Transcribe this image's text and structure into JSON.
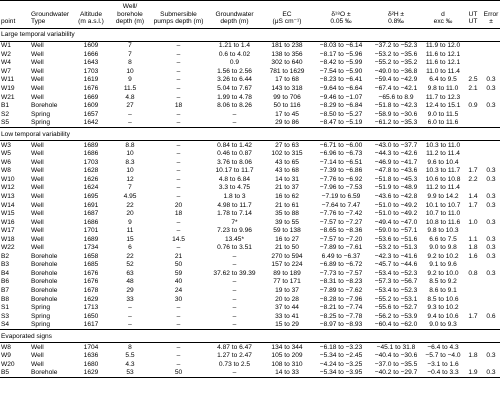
{
  "header": [
    [
      "point"
    ],
    [
      "Groundwater",
      "Type"
    ],
    [
      "Altitude",
      "(m a.s.l.)"
    ],
    [
      "Well/",
      "borehole",
      "depth (m)"
    ],
    [
      "Submersible",
      "pumps depth (m)"
    ],
    [
      "Groundwater",
      "depth (m)"
    ],
    [
      "EC",
      "(μS cm⁻¹)"
    ],
    [
      "δ¹⁸O ±",
      "0.05 ‰"
    ],
    [
      "δ²H ±",
      "0.8‰"
    ],
    [
      "d",
      "exc ‰"
    ],
    [
      "UT",
      "UT"
    ],
    [
      "Error",
      "±"
    ]
  ],
  "sections": [
    {
      "title": "Large temporal variability",
      "rows": [
        [
          "W1",
          "Well",
          "1609",
          "7",
          "–",
          "1.21 to 1.4",
          "181 to 238",
          "−8.03 to −6.14",
          "−37.2 to −52.3",
          "11.9 to 12.0",
          null,
          null
        ],
        [
          "W2",
          "Well",
          "1666",
          "7",
          "–",
          "0.6 to 4.02",
          "138 to 356",
          "−8.17 to −5.96",
          "−53.2 to −35.6",
          "11.6 to 12.1",
          null,
          null
        ],
        [
          "W4",
          "Well",
          "1643",
          "8",
          "–",
          "0.9",
          "302 to 640",
          "−8.42 to −5.99",
          "−55.2 to −35.2",
          "11.6 to 12.1",
          null,
          null
        ],
        [
          "W7",
          "Well",
          "1703",
          "10",
          "–",
          "1.56 to 2.56",
          "781 to 1629",
          "−7.54 to −5.90",
          "−49.0 to −36.8",
          "11.0 to 11.4",
          null,
          null
        ],
        [
          "W11",
          "Well",
          "1619",
          "9",
          "–",
          "3.26 to 6.44",
          "17 to 68",
          "−8.23 to −6.41",
          "−59.4 to −42.9",
          "6.4 to 9.5",
          "2.5",
          "0.3"
        ],
        [
          "W19",
          "Well",
          "1676",
          "11.5",
          "–",
          "5.04 to 7.67",
          "143 to 318",
          "−9.64 to −6.64",
          "−67.4 to −42.1",
          "9.8 to 11.0",
          "2.1",
          "0.3"
        ],
        [
          "W21",
          "Well",
          "1669",
          "4.8",
          "–",
          "1.99 to 4.78",
          "99 to 706",
          "−9.46 to −1.07",
          "−65.6 to 8.9",
          "11.7 to 12.3",
          null,
          null
        ],
        [
          "B1",
          "Borehole",
          "1609",
          "27",
          "18",
          "8.06 to 8.26",
          "50 to 116",
          "−8.29 to −6.84",
          "−51.8 to −42.3",
          "12.4 to 15.1",
          "0.9",
          "0.3"
        ],
        [
          "S2",
          "Spring",
          "1657",
          "–",
          "–",
          "–",
          "17 to 45",
          "−8.50 to −5.27",
          "−58.9 to −30.6",
          "9.0 to 11.5",
          null,
          null
        ],
        [
          "S5",
          "Spring",
          "1642",
          "–",
          "–",
          "–",
          "29 to 86",
          "−8.47 to −5.19",
          "−61.2 to −35.3",
          "6.0 to 11.6",
          null,
          null
        ]
      ]
    },
    {
      "title": "Low temporal variability",
      "rows": [
        [
          "W3",
          "Well",
          "1689",
          "8.8",
          "–",
          "0.84 to 1.42",
          "27 to 63",
          "−6.71 to −6.00",
          "−43.0 to −37.7",
          "10.3 to 11.0",
          null,
          null
        ],
        [
          "W5",
          "Well",
          "1686",
          "10",
          "–",
          "0.46 to 0.87",
          "102 to 315",
          "−6.96 to −6.73",
          "−44.3 to −42.6",
          "11.2 to 11.4",
          null,
          null
        ],
        [
          "W6",
          "Well",
          "1703",
          "8.3",
          "–",
          "3.76 to 8.06",
          "43 to 65",
          "−7.14 to −6.51",
          "−46.9 to −41.7",
          "9.6 to 10.4",
          null,
          null
        ],
        [
          "W8",
          "Well",
          "1628",
          "10",
          "–",
          "10.17 to 11.7",
          "43 to 68",
          "−7.39 to −6.86",
          "−47.8 to −43.6",
          "10.3 to 11.7",
          "1.7",
          "0.3"
        ],
        [
          "W10",
          "Well",
          "1626",
          "12",
          "–",
          "4.8 to 6.84",
          "14 to 31",
          "−7.76 to −6.92",
          "−51.8 to −45.3",
          "10.6 to 10.8",
          "2.2",
          "0.3"
        ],
        [
          "W12",
          "Well",
          "1624",
          "7",
          "–",
          "3.3 to 4.75",
          "21 to 37",
          "−7.96 to −7.53",
          "−51.9 to −48.9",
          "11.2 to 11.4",
          null,
          null
        ],
        [
          "W13",
          "Well",
          "1695",
          "4.95",
          "–",
          "1.8 to 3",
          "16 to 62",
          "−7.19 to 6.59",
          "−43.6 to −42.8",
          "9.9 to 14.2",
          "1.4",
          "0.3"
        ],
        [
          "W14",
          "Well",
          "1691",
          "22",
          "20",
          "4.98 to 11.7",
          "21 to 61",
          "−7.64 to 7.47",
          "−51.0 to −49.2",
          "10.1 to 10.7",
          "1.7",
          "0.3"
        ],
        [
          "W15",
          "Well",
          "1687",
          "20",
          "18",
          "1.78 to 7.14",
          "35 to 88",
          "−7.76 to −7.42",
          "−51.0 to −49.2",
          "10.7 to 11.0",
          null,
          null
        ],
        [
          "W16",
          "Well",
          "1686",
          "9",
          "–",
          "7*",
          "39 to 55",
          "−7.57 to −7.27",
          "−49.4 to −47.0",
          "10.8 to 11.6",
          "1.0",
          "0.3"
        ],
        [
          "W17",
          "Well",
          "1701",
          "11",
          "–",
          "7.23 to 9.96",
          "59 to 138",
          "−8.65 to −8.36",
          "−59.0 to −57.1",
          "9.8 to 10.3",
          null,
          null
        ],
        [
          "W18",
          "Well",
          "1689",
          "15",
          "14.5",
          "13.45*",
          "16 to 27",
          "−7.57 to −7.20",
          "−53.6 to −51.6",
          "6.6 to 7.5",
          "1.1",
          "0.3"
        ],
        [
          "W22",
          "Well",
          "1734",
          "6",
          "–",
          "0.76 to 3.51",
          "21 to 50",
          "−7.89 to −7.61",
          "−53.2 to −51.3",
          "9.0 to 9.8",
          "1.8",
          "0.3"
        ],
        [
          "B2",
          "Borehole",
          "1658",
          "22",
          "21",
          "–",
          "270 to 594",
          "6.49 to −6.37",
          "−42.3 to −41.6",
          "9.2 to 10.2",
          "1.6",
          "0.3"
        ],
        [
          "B3",
          "Borehole",
          "1685",
          "52",
          "50",
          "–",
          "157 to 224",
          "−6.89 to −6.72",
          "−45.7 to −44.6",
          "9.1 to 9.6",
          null,
          null
        ],
        [
          "B4",
          "Borehole",
          "1676",
          "63",
          "59",
          "37.62 to 39.39",
          "89 to 189",
          "−7.73 to −7.57",
          "−53.4 to −52.3",
          "9.2 to 10.0",
          "0.8",
          "0.3"
        ],
        [
          "B6",
          "Borehole",
          "1676",
          "48",
          "40",
          "–",
          "77 to 171",
          "−8.31 to −8.23",
          "−57.3 to −56.7",
          "8.5 to 9.2",
          null,
          null
        ],
        [
          "B7",
          "Borehole",
          "1678",
          "29",
          "24",
          "–",
          "19 to 37",
          "−7.89 to −7.62",
          "−53.4 to −52.3",
          "8.6 to 9.1",
          null,
          null
        ],
        [
          "B8",
          "Borehole",
          "1629",
          "33",
          "30",
          "–",
          "20 to 28",
          "−8.28 to −7.96",
          "−55.2 to −53.1",
          "8.5 to 10.6",
          null,
          null
        ],
        [
          "S1",
          "Spring",
          "1713",
          "–",
          "–",
          "–",
          "37 to 44",
          "−8.21 to −7.74",
          "−55.6 to −52.7",
          "9.3 to 10.2",
          null,
          null
        ],
        [
          "S3",
          "Spring",
          "1650",
          "–",
          "–",
          "–",
          "33 to 41",
          "−8.25 to −7.78",
          "−56.2 to −53.9",
          "9.4 to 10.6",
          "1.7",
          "0.6"
        ],
        [
          "S4",
          "Spring",
          "1617",
          "–",
          "–",
          "–",
          "15 to 29",
          "−8.97 to −8.93",
          "−60.4 to −62.0",
          "9.0 to 9.3",
          null,
          null
        ]
      ]
    },
    {
      "title": "Evaporated signs",
      "rows": [
        [
          "W8",
          "Well",
          "1704",
          "8",
          "–",
          "4.87 to 6.47",
          "134 to 344",
          "−6.18 to −3.23",
          "−45.1 to 31.8",
          "−6.4 to 4.3",
          null,
          null
        ],
        [
          "W9",
          "Well",
          "1636",
          "5.5",
          "–",
          "1.27 to 2.47",
          "105 to 209",
          "−5.34 to −2.45",
          "−40.4 to −30.6",
          "−5.7 to −4.0",
          "1.8",
          "0.3"
        ],
        [
          "W20",
          "Well",
          "1680",
          "4.3",
          "–",
          "0.73 to 2.5",
          "108 to 310",
          "−4.24 to −3.25",
          "−37.0 to −35.5",
          "−3.1 to 1.6",
          null,
          null
        ],
        [
          "B5",
          "Borehole",
          "1629",
          "53",
          "50",
          "–",
          "14 to 33",
          "−5.34 to −3.95",
          "−40.2 to −29.7",
          "−0.4 to 3.3",
          "1.9",
          "0.3"
        ]
      ]
    }
  ]
}
